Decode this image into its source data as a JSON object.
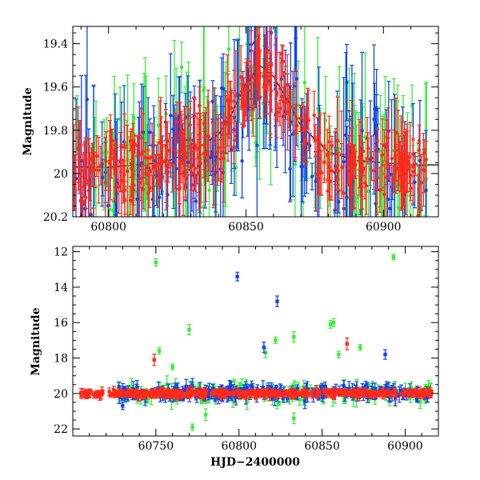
{
  "chart_data": [
    {
      "type": "scatter",
      "title": "",
      "xlabel": "",
      "ylabel": "Magnitude",
      "xlim": [
        60787,
        60920
      ],
      "ylim": [
        20.2,
        19.32
      ],
      "y_inverted": true,
      "xticks": [
        60800,
        60850,
        60900
      ],
      "yticks": [
        19.4,
        19.6,
        19.8,
        20,
        20.2
      ],
      "ytick_labels": [
        "19.4",
        "19.6",
        "19.8",
        "20",
        "20.2"
      ],
      "grid": false,
      "legend": "none",
      "model_curve": {
        "color": "#000000",
        "x": [
          60787,
          60800,
          60810,
          60820,
          60830,
          60840,
          60845,
          60850,
          60855,
          60860,
          60865,
          60870,
          60880,
          60890,
          60900,
          60910,
          60920
        ],
        "y": [
          19.97,
          19.97,
          19.96,
          19.95,
          19.9,
          19.82,
          19.72,
          19.58,
          19.5,
          19.55,
          19.66,
          19.78,
          19.9,
          19.94,
          19.95,
          19.96,
          19.96
        ]
      },
      "series": [
        {
          "color": "#33ee33",
          "marker": "circle",
          "x_range": [
            60787,
            60916
          ],
          "n_points": 140,
          "y_base": 19.9,
          "y_scatter": 0.28,
          "err_range": [
            0.05,
            0.4
          ]
        },
        {
          "color": "#1144ee",
          "marker": "circle",
          "x_range": [
            60787,
            60916
          ],
          "n_points": 170,
          "y_base": 19.9,
          "y_scatter": 0.25,
          "err_range": [
            0.05,
            0.4
          ]
        },
        {
          "color": "#ff2a1a",
          "marker": "circle",
          "x_range": [
            60787,
            60916
          ],
          "n_points": 320,
          "y_base": 19.92,
          "y_scatter": 0.14,
          "err_range": [
            0.03,
            0.22
          ]
        }
      ]
    },
    {
      "type": "scatter",
      "title": "",
      "xlabel": "HJD−2400000",
      "ylabel": "Magnitude",
      "xlim": [
        60700,
        60920
      ],
      "ylim": [
        22.4,
        11.7
      ],
      "y_inverted": true,
      "xticks": [
        60750,
        60800,
        60850,
        60900
      ],
      "yticks": [
        12,
        14,
        16,
        18,
        20,
        22
      ],
      "grid": false,
      "legend": "none",
      "series": [
        {
          "color": "#33ee33",
          "marker": "square",
          "x_range": [
            60727,
            60916
          ],
          "n_points": 170,
          "y_base": 19.95,
          "y_scatter": 0.45,
          "err_range": [
            0.1,
            0.5
          ],
          "outliers": [
            [
              60750,
              12.6
            ],
            [
              60893,
              12.3
            ],
            [
              60770,
              16.4
            ],
            [
              60833,
              16.8
            ],
            [
              60855,
              16.1
            ],
            [
              60857,
              16.0
            ],
            [
              60822,
              17.0
            ],
            [
              60816,
              17.7
            ],
            [
              60760,
              18.5
            ],
            [
              60752,
              17.6
            ],
            [
              60772,
              21.9
            ],
            [
              60780,
              21.2
            ],
            [
              60833,
              21.4
            ],
            [
              60860,
              17.8
            ],
            [
              60873,
              17.4
            ]
          ]
        },
        {
          "color": "#1144ee",
          "marker": "square",
          "x_range": [
            60727,
            60916
          ],
          "n_points": 220,
          "y_base": 19.95,
          "y_scatter": 0.35,
          "err_range": [
            0.1,
            0.45
          ],
          "outliers": [
            [
              60799,
              13.4
            ],
            [
              60823,
              14.8
            ],
            [
              60815,
              17.4
            ],
            [
              60888,
              17.8
            ],
            [
              60730,
              20.7
            ],
            [
              60850,
              19.6
            ],
            [
              60870,
              19.8
            ]
          ]
        },
        {
          "color": "#ff2a1a",
          "marker": "square",
          "x_range": [
            60705,
            60916
          ],
          "n_points": 420,
          "y_base": 20.0,
          "y_scatter": 0.17,
          "err_range": [
            0.05,
            0.25
          ],
          "outliers": [
            [
              60749,
              18.1
            ],
            [
              60865,
              17.2
            ]
          ]
        }
      ]
    }
  ]
}
